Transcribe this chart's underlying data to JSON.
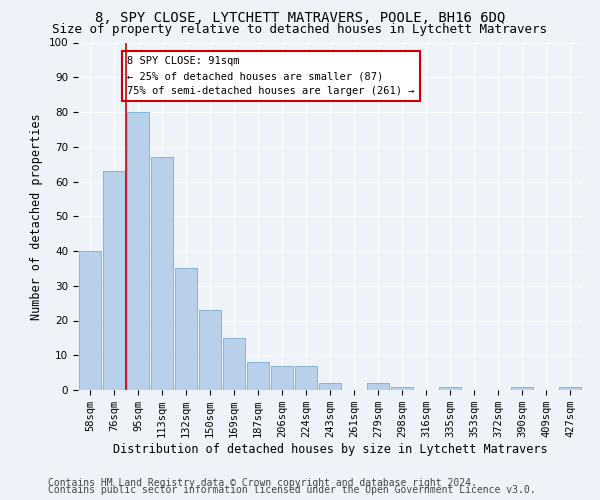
{
  "title": "8, SPY CLOSE, LYTCHETT MATRAVERS, POOLE, BH16 6DQ",
  "subtitle": "Size of property relative to detached houses in Lytchett Matravers",
  "xlabel": "Distribution of detached houses by size in Lytchett Matravers",
  "ylabel": "Number of detached properties",
  "categories": [
    "58sqm",
    "76sqm",
    "95sqm",
    "113sqm",
    "132sqm",
    "150sqm",
    "169sqm",
    "187sqm",
    "206sqm",
    "224sqm",
    "243sqm",
    "261sqm",
    "279sqm",
    "298sqm",
    "316sqm",
    "335sqm",
    "353sqm",
    "372sqm",
    "390sqm",
    "409sqm",
    "427sqm"
  ],
  "values": [
    40,
    63,
    80,
    67,
    35,
    23,
    15,
    8,
    7,
    7,
    2,
    0,
    2,
    1,
    0,
    1,
    0,
    0,
    1,
    0,
    1
  ],
  "bar_color": "#b8d0ea",
  "bar_edge_color": "#7aadd4",
  "property_line_color": "#cc0000",
  "property_line_x": 1.5,
  "annotation_text": "8 SPY CLOSE: 91sqm\n← 25% of detached houses are smaller (87)\n75% of semi-detached houses are larger (261) →",
  "annotation_box_color": "#ffffff",
  "annotation_box_edge": "#cc0000",
  "ylim": [
    0,
    100
  ],
  "yticks": [
    0,
    10,
    20,
    30,
    40,
    50,
    60,
    70,
    80,
    90,
    100
  ],
  "footer1": "Contains HM Land Registry data © Crown copyright and database right 2024.",
  "footer2": "Contains public sector information licensed under the Open Government Licence v3.0.",
  "background_color": "#eef2f9",
  "grid_color": "#ffffff",
  "title_fontsize": 10,
  "subtitle_fontsize": 9,
  "tick_fontsize": 7.5,
  "ylabel_fontsize": 8.5,
  "xlabel_fontsize": 8.5,
  "footer_fontsize": 7,
  "annotation_fontsize": 7.5
}
